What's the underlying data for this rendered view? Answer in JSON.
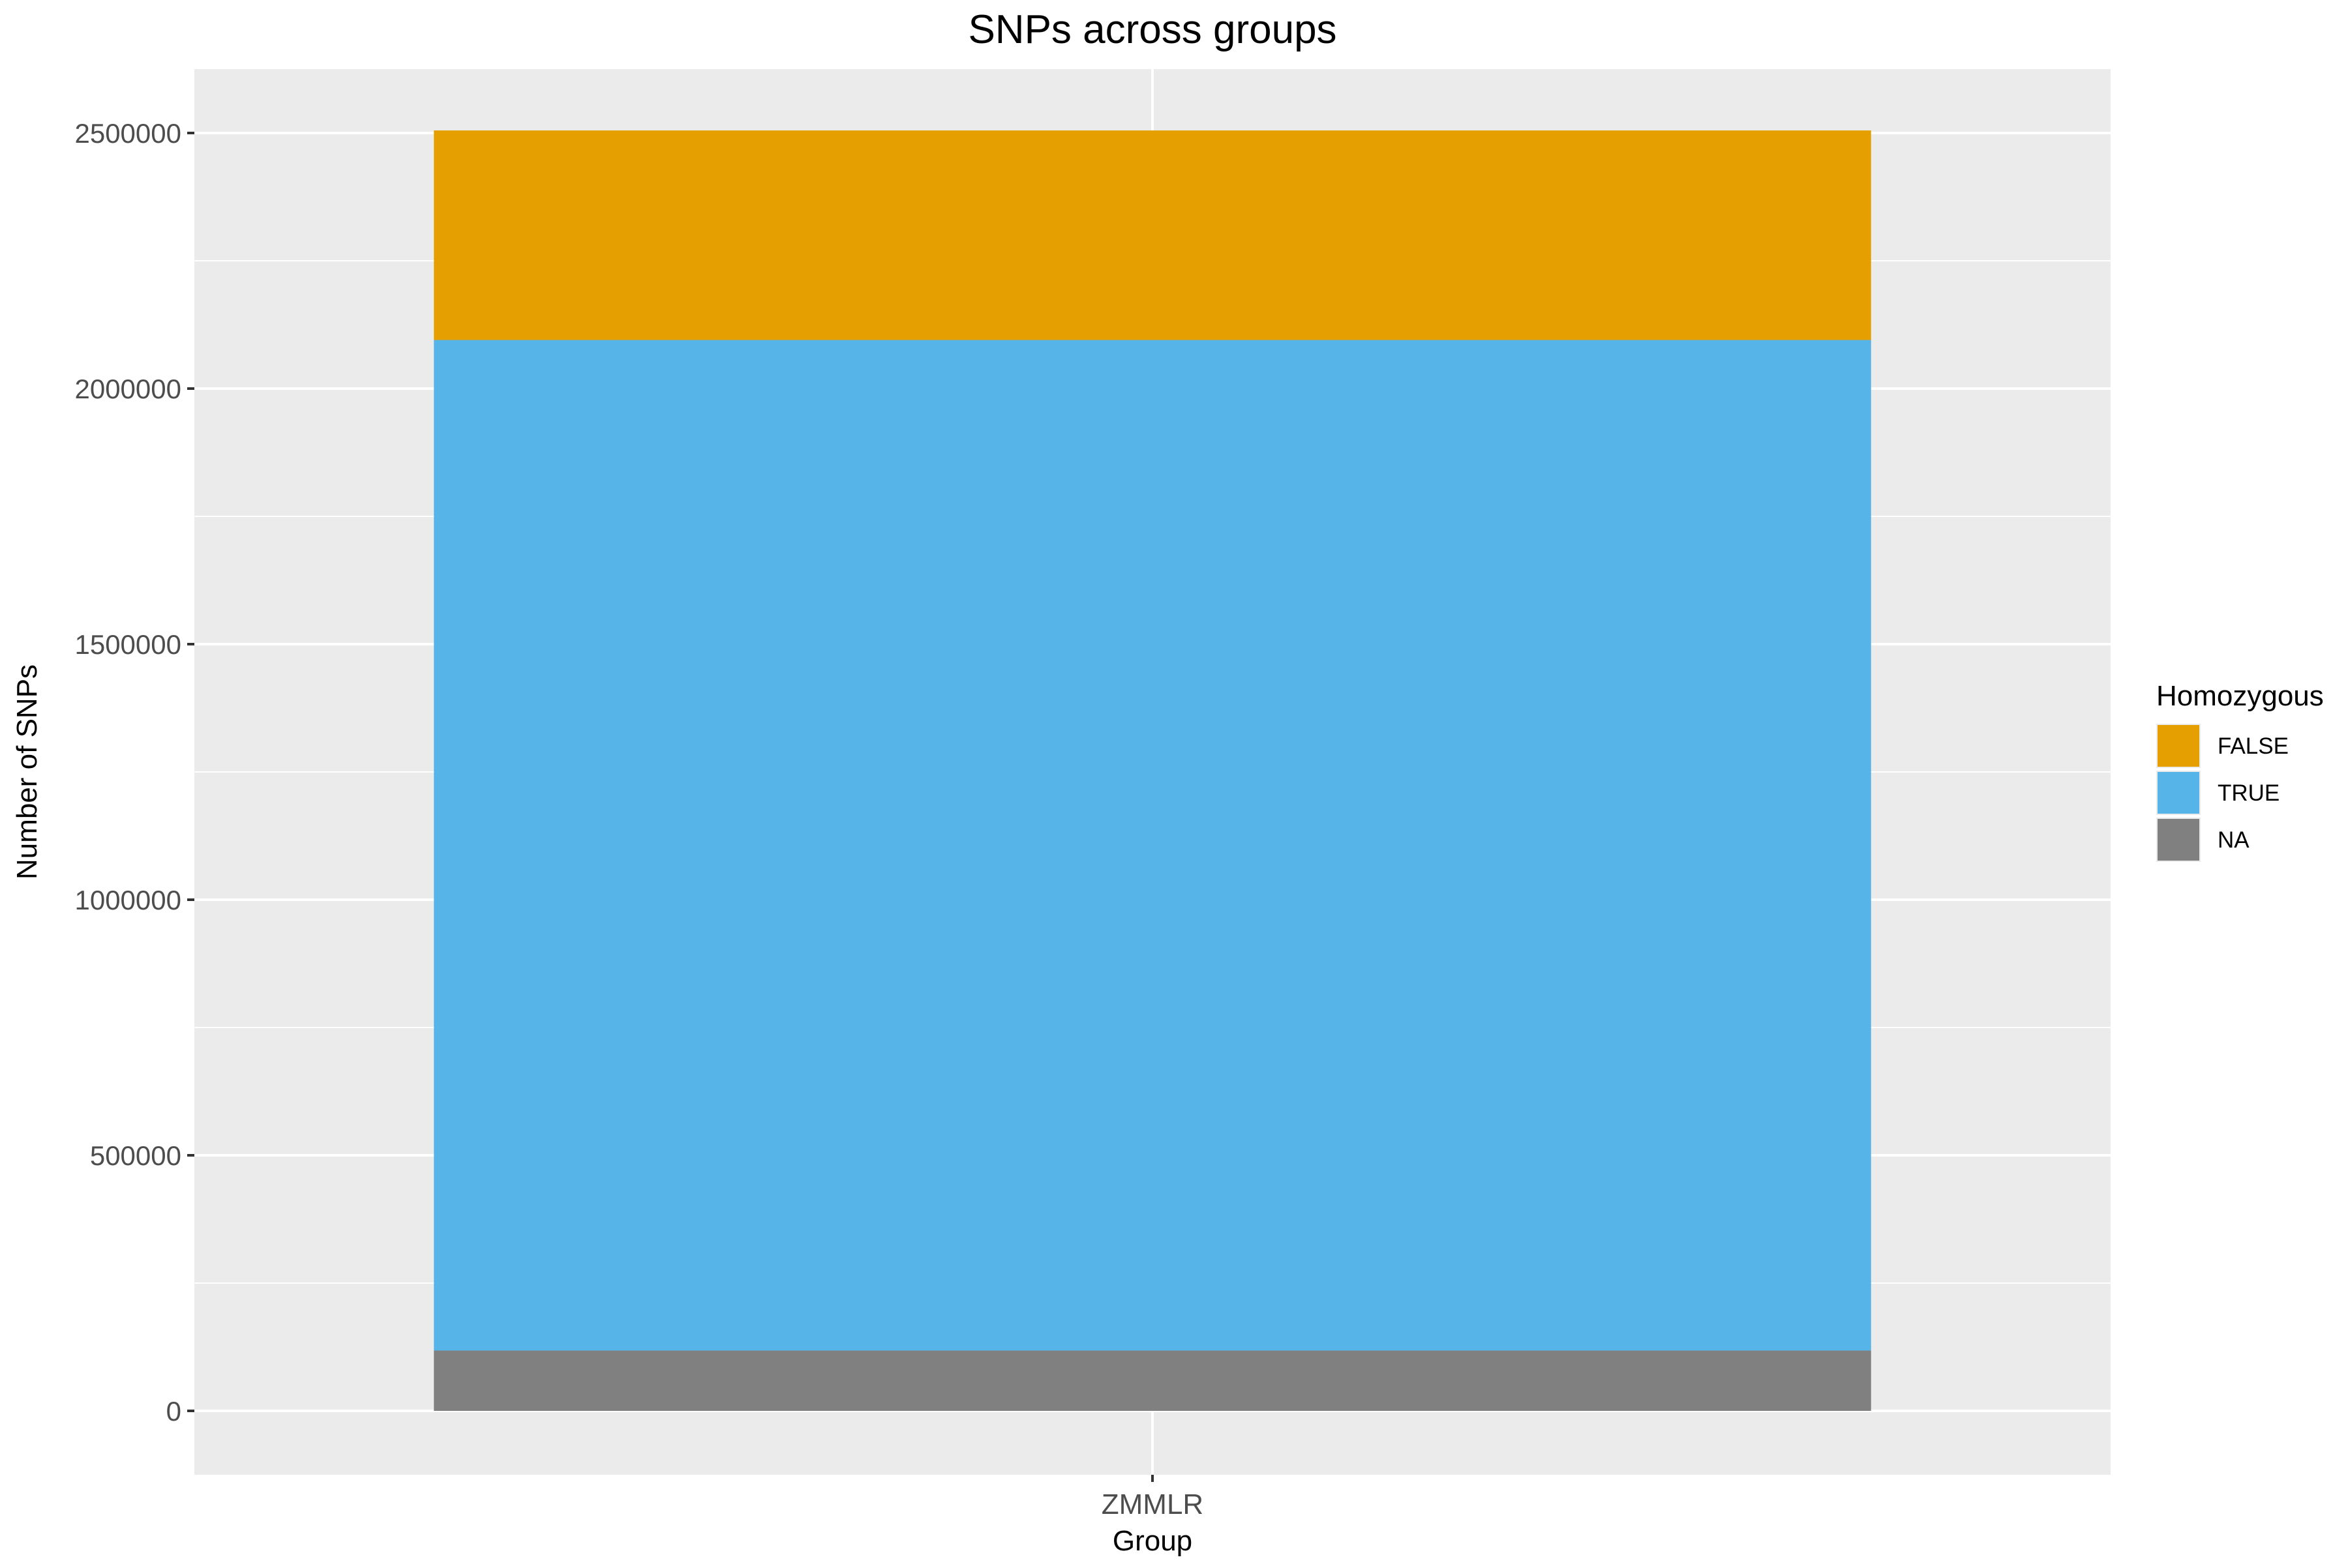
{
  "chart_data": {
    "type": "bar",
    "title": "SNPs across groups",
    "xlabel": "Group",
    "ylabel": "Number of SNPs",
    "categories": [
      "ZMMLR"
    ],
    "yticks": [
      0,
      500000,
      1000000,
      1500000,
      2000000,
      2500000
    ],
    "ylim": [
      -125000,
      2625000
    ],
    "stacked": true,
    "grid": true,
    "legend": {
      "title": "Homozygous",
      "position": "right",
      "entries": [
        "FALSE",
        "TRUE",
        "NA"
      ]
    },
    "series": [
      {
        "name": "NA",
        "values": [
          118000
        ],
        "color": "#808080"
      },
      {
        "name": "TRUE",
        "values": [
          1977000
        ],
        "color": "#56B4E9"
      },
      {
        "name": "FALSE",
        "values": [
          410000
        ],
        "color": "#E69F00"
      }
    ],
    "colors": {
      "panel_background": "#EBEBEB",
      "grid": "#FFFFFF",
      "axis_text": "#4D4D4D",
      "text": "#000000",
      "tick": "#333333"
    }
  }
}
